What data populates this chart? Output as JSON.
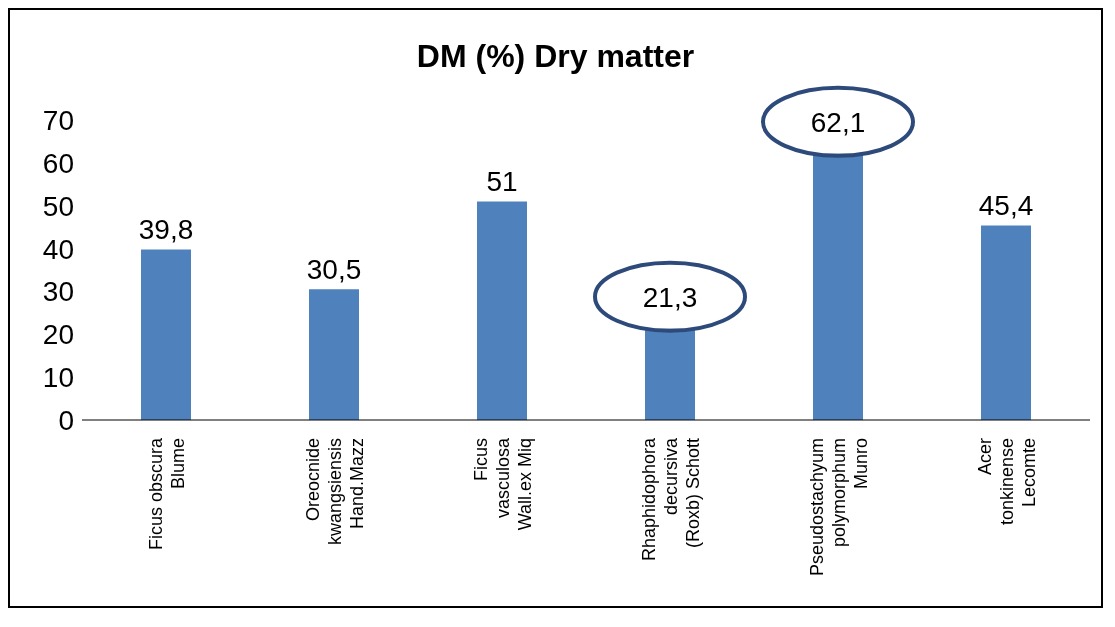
{
  "chart_data": {
    "type": "bar",
    "title": "DM (%) Dry matter",
    "categories": [
      "Ficus obscura Blume",
      "Oreocnide kwangsiensis Hand.Mazz",
      "Ficus vasculosa Wall.ex Miq",
      "Rhaphidophora decursiva (Roxb) Schott",
      "Pseudostachyum polymorphum Munro",
      "Acer tonkinense Lecomte"
    ],
    "values": [
      39.8,
      30.5,
      51,
      21.3,
      62.1,
      45.4
    ],
    "value_labels": [
      "39,8",
      "30,5",
      "51",
      null,
      null,
      "45,4"
    ],
    "annotations": [
      {
        "text": "21,3",
        "x": "Rhaphidophora decursiva (Roxb) Schott",
        "y": 21.3
      },
      {
        "text": "62,1",
        "x": "Pseudostachyum polymorphum Munro",
        "y": 62.1
      }
    ],
    "color": "#4f81bd",
    "ylim": [
      0,
      70
    ],
    "yticks": [
      0,
      10,
      20,
      30,
      40,
      50,
      60,
      70
    ],
    "grid": false,
    "legend": false
  }
}
